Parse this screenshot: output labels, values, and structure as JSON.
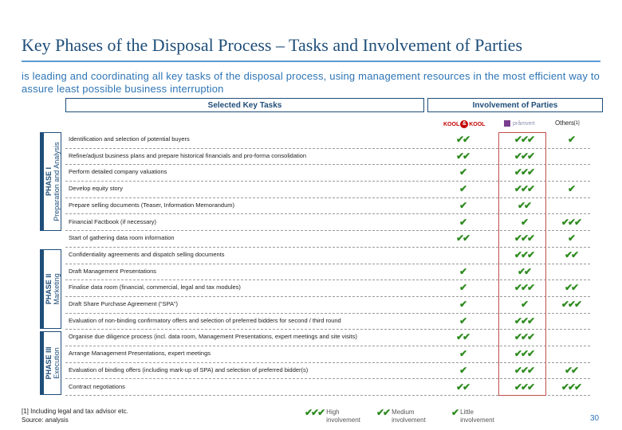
{
  "title": "Key Phases of the Disposal Process – Tasks and Involvement of Parties",
  "subtitle": "is leading and coordinating all key tasks of the disposal process, using management resources in the most efficient way to assure least possible business interruption",
  "headers": {
    "tasks": "Selected Key Tasks",
    "involvement": "Involvement of Parties"
  },
  "parties": {
    "kool_left": "KOOL",
    "kool_mid": "&",
    "kool_right": "KOOL",
    "pw": "pråmvert",
    "others": "Others",
    "others_sup": "[1]"
  },
  "phases": [
    {
      "num": "PHASE I",
      "name": "Preparation and Analysis"
    },
    {
      "num": "PHASE II",
      "name": "Marketing"
    },
    {
      "num": "PHASE III",
      "name": "Execution"
    }
  ],
  "check_glyph": "✔",
  "rows": [
    {
      "task": "Identification and selection of potential buyers",
      "c1": "✔✔",
      "c2": "✔✔✔",
      "c3": "✔"
    },
    {
      "task": "Refine/adjust business plans and prepare historical financials and pro-forma consolidation",
      "c1": "✔✔",
      "c2": "✔✔✔",
      "c3": ""
    },
    {
      "task": "Perform detailed company valuations",
      "c1": "✔",
      "c2": "✔✔✔",
      "c3": ""
    },
    {
      "task": "Develop equity story",
      "c1": "✔",
      "c2": "✔✔✔",
      "c3": "✔"
    },
    {
      "task": "Prepare selling documents (Teaser, Information Memorandum)",
      "c1": "✔",
      "c2": "✔✔",
      "c3": ""
    },
    {
      "task": "Financial Factbook (if necessary)",
      "c1": "✔",
      "c2": "✔",
      "c3": "✔✔✔"
    },
    {
      "task": "Start of gathering data room information",
      "c1": "✔✔",
      "c2": "✔✔✔",
      "c3": "✔"
    },
    {
      "task": "Confidentiality agreements and dispatch selling documents",
      "c1": "",
      "c2": "✔✔✔",
      "c3": "✔✔"
    },
    {
      "task": "Draft Management Presentations",
      "c1": "✔",
      "c2": "✔✔",
      "c3": ""
    },
    {
      "task": "Finalise data room (financial, commercial, legal and tax modules)",
      "c1": "✔",
      "c2": "✔✔✔",
      "c3": "✔✔"
    },
    {
      "task": "Draft Share Purchase Agreement (“SPA”)",
      "c1": "✔",
      "c2": "✔",
      "c3": "✔✔✔"
    },
    {
      "task": "Evaluation of non-binding confirmatory offers and selection of preferred bidders for second / third round",
      "c1": "✔",
      "c2": "✔✔✔",
      "c3": ""
    },
    {
      "task": "Organise due diligence process (incl. data room, Management Presentations, expert meetings and site visits)",
      "c1": "✔✔",
      "c2": "✔✔✔",
      "c3": ""
    },
    {
      "task": "Arrange Management Presentations, expert meetings",
      "c1": "✔",
      "c2": "✔✔✔",
      "c3": ""
    },
    {
      "task": "Evaluation of binding offers (including mark-up of SPA) and selection of preferred bidder(s)",
      "c1": "✔",
      "c2": "✔✔✔",
      "c3": "✔✔"
    },
    {
      "task": "Contract negotiations",
      "c1": "✔✔",
      "c2": "✔✔✔",
      "c3": "✔✔✔"
    }
  ],
  "footnote": {
    "line1": "[1] Including legal and tax advisor etc.",
    "line2": "Source: analysis"
  },
  "legend": [
    {
      "checks": "✔✔✔",
      "line1": "High",
      "line2": "involvement"
    },
    {
      "checks": "✔✔",
      "line1": "Medium",
      "line2": "involvement"
    },
    {
      "checks": "✔",
      "line1": "Little",
      "line2": "involvement"
    }
  ],
  "page_number": "30",
  "colors": {
    "brand": "#1f4e79",
    "accent": "#5b9bd5",
    "check": "#2e8b1f",
    "highlight": "#c0504d"
  }
}
